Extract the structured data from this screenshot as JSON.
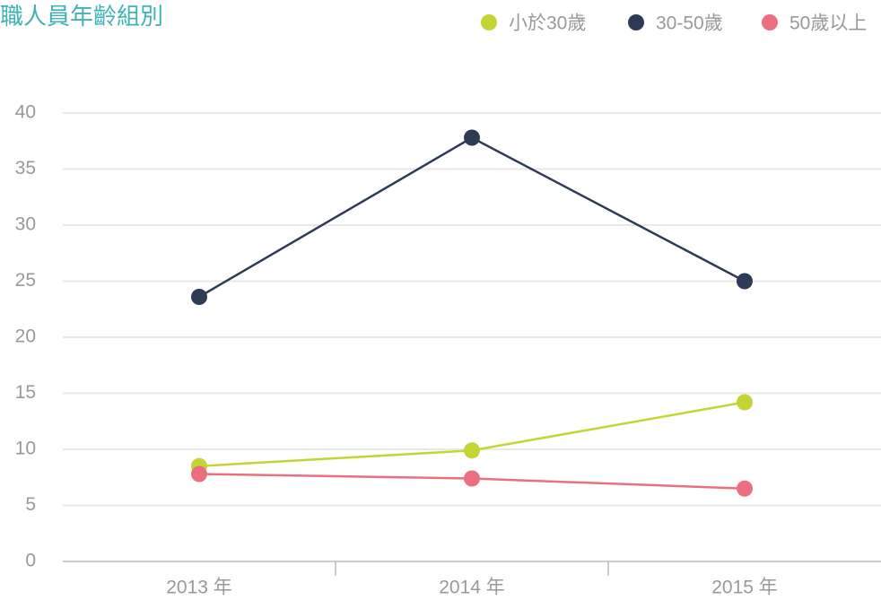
{
  "chart_data": {
    "type": "line",
    "title": "職人員年齡組別",
    "categories": [
      "2013 年",
      "2014 年",
      "2015 年"
    ],
    "series": [
      {
        "name": "小於30歲",
        "color": "#c5d435",
        "values": [
          8.5,
          9.9,
          14.2
        ]
      },
      {
        "name": "30-50歲",
        "color": "#2e3b55",
        "values": [
          23.6,
          37.8,
          25
        ]
      },
      {
        "name": "50歲以上",
        "color": "#ec6f80",
        "values": [
          7.8,
          7.4,
          6.5
        ]
      }
    ],
    "ylim": [
      0,
      40
    ],
    "yticks": [
      0,
      5,
      10,
      15,
      20,
      25,
      30,
      35,
      40
    ],
    "grid": true,
    "legend": "top-right"
  }
}
